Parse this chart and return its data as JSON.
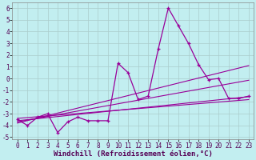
{
  "title": "",
  "xlabel": "Windchill (Refroidissement éolien,°C)",
  "ylabel": "",
  "bg_color": "#c2eef0",
  "grid_color": "#aacccc",
  "line_color": "#990099",
  "ylim": [
    -5.2,
    6.5
  ],
  "xlim": [
    -0.5,
    23.5
  ],
  "yticks": [
    -5,
    -4,
    -3,
    -2,
    -1,
    0,
    1,
    2,
    3,
    4,
    5,
    6
  ],
  "xticks": [
    0,
    1,
    2,
    3,
    4,
    5,
    6,
    7,
    8,
    9,
    10,
    11,
    12,
    13,
    14,
    15,
    16,
    17,
    18,
    19,
    20,
    21,
    22,
    23
  ],
  "windchill_x": [
    0,
    1,
    2,
    3,
    4,
    5,
    6,
    7,
    8,
    9,
    10,
    11,
    12,
    13,
    14,
    15,
    16,
    17,
    18,
    19,
    20,
    21,
    22,
    23
  ],
  "windchill_y": [
    -3.5,
    -4.0,
    -3.3,
    -3.0,
    -4.6,
    -3.7,
    -3.3,
    -3.6,
    -3.6,
    -3.6,
    1.3,
    0.5,
    -1.8,
    -1.5,
    2.5,
    6.0,
    4.5,
    3.0,
    1.2,
    -0.1,
    0.0,
    -1.7,
    -1.7,
    -1.5
  ],
  "trend1_x": [
    0,
    23
  ],
  "trend1_y": [
    -3.8,
    1.1
  ],
  "trend2_x": [
    0,
    23
  ],
  "trend2_y": [
    -3.6,
    -1.55
  ],
  "trend3_x": [
    0,
    23
  ],
  "trend3_y": [
    -3.4,
    -1.8
  ],
  "trend4_x": [
    0,
    23
  ],
  "trend4_y": [
    -3.7,
    -0.15
  ],
  "tick_fontsize": 5.5,
  "xlabel_fontsize": 6.5
}
